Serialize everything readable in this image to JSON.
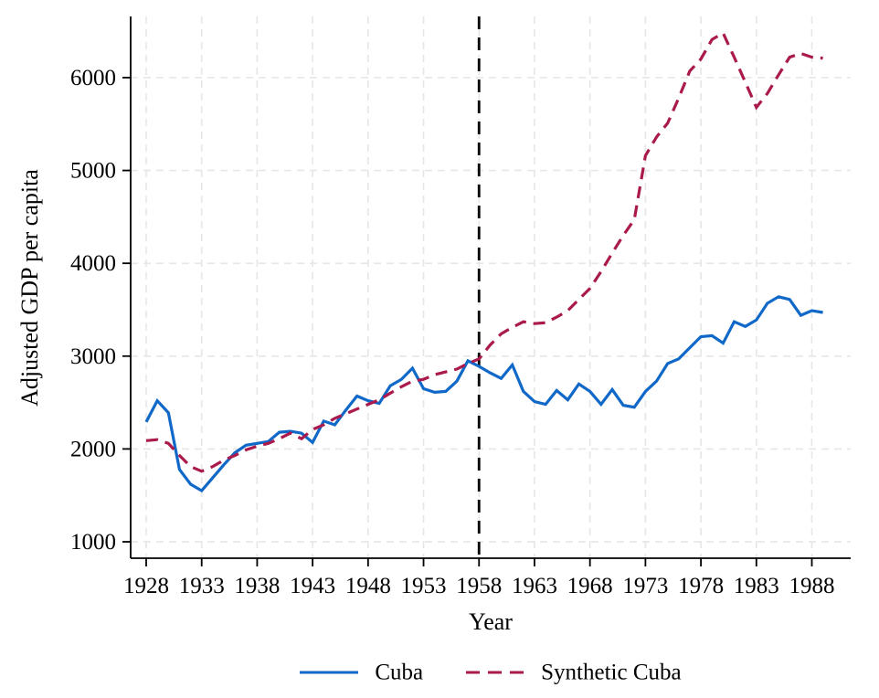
{
  "chart_data": {
    "type": "line",
    "title": "",
    "xlabel": "Year",
    "ylabel": "Adjusted GDP per capita",
    "legend_position": "bottom-center",
    "grid": "both-dashed",
    "grid_color": "#e6e6e6",
    "axis_color": "#000000",
    "xlim": [
      1926.6,
      1991.5
    ],
    "ylim": [
      823,
      6659
    ],
    "x_ticks": [
      1928,
      1933,
      1938,
      1943,
      1948,
      1953,
      1958,
      1963,
      1968,
      1973,
      1978,
      1983,
      1988
    ],
    "y_ticks": [
      1000,
      2000,
      3000,
      4000,
      5000,
      6000
    ],
    "treatment_line": {
      "x": 1958,
      "color": "#000000",
      "style": "dashed"
    },
    "x": [
      1928,
      1929,
      1930,
      1931,
      1932,
      1933,
      1934,
      1935,
      1936,
      1937,
      1938,
      1939,
      1940,
      1941,
      1942,
      1943,
      1944,
      1945,
      1946,
      1947,
      1948,
      1949,
      1950,
      1951,
      1952,
      1953,
      1954,
      1955,
      1956,
      1957,
      1958,
      1959,
      1960,
      1961,
      1962,
      1963,
      1964,
      1965,
      1966,
      1967,
      1968,
      1969,
      1970,
      1971,
      1972,
      1973,
      1974,
      1975,
      1976,
      1977,
      1978,
      1979,
      1980,
      1981,
      1982,
      1983,
      1984,
      1985,
      1986,
      1987,
      1988,
      1989
    ],
    "series": [
      {
        "name": "Cuba",
        "color": "#1068c8",
        "style": "solid",
        "values": [
          2290,
          2520,
          2390,
          1780,
          1620,
          1550,
          1690,
          1830,
          1960,
          2040,
          2060,
          2080,
          2180,
          2190,
          2170,
          2070,
          2300,
          2260,
          2420,
          2570,
          2520,
          2490,
          2680,
          2750,
          2870,
          2650,
          2610,
          2620,
          2730,
          2950,
          2890,
          2820,
          2760,
          2905,
          2620,
          2510,
          2480,
          2630,
          2530,
          2700,
          2620,
          2480,
          2640,
          2470,
          2450,
          2620,
          2730,
          2920,
          2970,
          3090,
          3210,
          3220,
          3140,
          3370,
          3320,
          3390,
          3570,
          3640,
          3610,
          3440,
          3490,
          3470
        ]
      },
      {
        "name": "Synthetic Cuba",
        "color": "#ab1a4d",
        "style": "dashed",
        "values": [
          2090,
          2100,
          2060,
          1930,
          1810,
          1760,
          1810,
          1880,
          1930,
          1990,
          2030,
          2060,
          2110,
          2170,
          2110,
          2210,
          2260,
          2330,
          2380,
          2430,
          2480,
          2530,
          2600,
          2670,
          2730,
          2750,
          2800,
          2830,
          2860,
          2920,
          2970,
          3120,
          3240,
          3310,
          3370,
          3350,
          3360,
          3420,
          3490,
          3610,
          3730,
          3910,
          4110,
          4300,
          4470,
          5160,
          5360,
          5510,
          5780,
          6070,
          6200,
          6410,
          6480,
          6220,
          5950,
          5680,
          5830,
          6030,
          6220,
          6260,
          6220,
          6210
        ]
      }
    ]
  }
}
